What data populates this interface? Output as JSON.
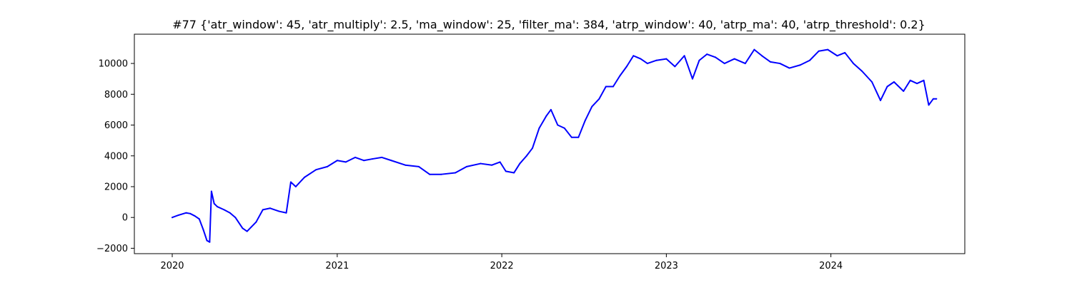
{
  "chart_data": {
    "type": "line",
    "title": "#77 {'atr_window': 45, 'atr_multiply': 2.5, 'ma_window': 25, 'filter_ma': 384, 'atrp_window': 40, 'atrp_ma': 40, 'atrp_threshold': 0.2}",
    "xlabel": "",
    "ylabel": "",
    "x_axis": {
      "type": "date",
      "range": [
        "2019-10-09",
        "2024-10-24"
      ],
      "ticks": [
        {
          "value": "2020-01-01",
          "label": "2020"
        },
        {
          "value": "2021-01-01",
          "label": "2021"
        },
        {
          "value": "2022-01-01",
          "label": "2022"
        },
        {
          "value": "2023-01-01",
          "label": "2023"
        },
        {
          "value": "2024-01-01",
          "label": "2024"
        }
      ]
    },
    "y_axis": {
      "range": [
        -2350,
        11900
      ],
      "ticks": [
        {
          "value": -2000,
          "label": "−2000"
        },
        {
          "value": 0,
          "label": "0"
        },
        {
          "value": 2000,
          "label": "2000"
        },
        {
          "value": 4000,
          "label": "4000"
        },
        {
          "value": 6000,
          "label": "6000"
        },
        {
          "value": 8000,
          "label": "8000"
        },
        {
          "value": 10000,
          "label": "10000"
        }
      ]
    },
    "grid": false,
    "legend": "none",
    "series": [
      {
        "color": "#0000ff",
        "x": [
          "2020-01-01",
          "2020-01-15",
          "2020-02-01",
          "2020-02-10",
          "2020-02-20",
          "2020-03-01",
          "2020-03-10",
          "2020-03-18",
          "2020-03-24",
          "2020-03-28",
          "2020-04-03",
          "2020-04-10",
          "2020-04-25",
          "2020-05-08",
          "2020-05-20",
          "2020-06-05",
          "2020-06-15",
          "2020-07-05",
          "2020-07-20",
          "2020-08-05",
          "2020-08-25",
          "2020-09-10",
          "2020-09-20",
          "2020-10-01",
          "2020-10-20",
          "2020-11-15",
          "2020-12-10",
          "2021-01-01",
          "2021-01-20",
          "2021-02-10",
          "2021-03-01",
          "2021-03-20",
          "2021-04-10",
          "2021-05-01",
          "2021-06-01",
          "2021-07-01",
          "2021-07-25",
          "2021-08-20",
          "2021-09-20",
          "2021-10-15",
          "2021-11-15",
          "2021-12-10",
          "2021-12-28",
          "2022-01-10",
          "2022-01-28",
          "2022-02-10",
          "2022-02-25",
          "2022-03-10",
          "2022-03-25",
          "2022-04-10",
          "2022-04-20",
          "2022-05-05",
          "2022-05-20",
          "2022-06-05",
          "2022-06-20",
          "2022-07-05",
          "2022-07-20",
          "2022-08-05",
          "2022-08-20",
          "2022-09-05",
          "2022-09-20",
          "2022-10-05",
          "2022-10-20",
          "2022-11-05",
          "2022-11-20",
          "2022-12-10",
          "2023-01-01",
          "2023-01-20",
          "2023-02-10",
          "2023-02-28",
          "2023-03-15",
          "2023-04-01",
          "2023-04-20",
          "2023-05-10",
          "2023-06-01",
          "2023-06-25",
          "2023-07-15",
          "2023-08-01",
          "2023-08-20",
          "2023-09-10",
          "2023-10-01",
          "2023-10-25",
          "2023-11-15",
          "2023-12-05",
          "2023-12-25",
          "2024-01-15",
          "2024-02-01",
          "2024-02-20",
          "2024-03-10",
          "2024-04-01",
          "2024-04-20",
          "2024-05-05",
          "2024-05-20",
          "2024-06-10",
          "2024-06-25",
          "2024-07-10",
          "2024-07-25",
          "2024-08-05",
          "2024-08-15",
          "2024-08-22"
        ],
        "values": [
          0,
          150,
          300,
          250,
          100,
          -100,
          -800,
          -1500,
          -1600,
          1700,
          900,
          700,
          500,
          300,
          0,
          -700,
          -900,
          -300,
          500,
          600,
          400,
          300,
          2300,
          2000,
          2600,
          3100,
          3300,
          3700,
          3600,
          3900,
          3700,
          3800,
          3900,
          3700,
          3400,
          3300,
          2800,
          2800,
          2900,
          3300,
          3500,
          3400,
          3600,
          3000,
          2900,
          3500,
          4000,
          4500,
          5800,
          6600,
          7000,
          6000,
          5800,
          5200,
          5200,
          6300,
          7200,
          7700,
          8500,
          8500,
          9200,
          9800,
          10500,
          10300,
          10000,
          10200,
          10300,
          9800,
          10500,
          9000,
          10200,
          10600,
          10400,
          10000,
          10300,
          10000,
          10900,
          10500,
          10100,
          10000,
          9700,
          9900,
          10200,
          10800,
          10900,
          10500,
          10700,
          10000,
          9500,
          8800,
          7600,
          8500,
          8800,
          8200,
          8900,
          8700,
          8900,
          7300,
          7700,
          7700
        ]
      }
    ]
  }
}
